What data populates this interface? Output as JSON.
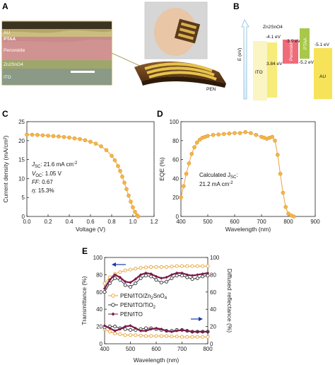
{
  "panel_labels": {
    "a": "A",
    "b": "B",
    "c": "C",
    "d": "D",
    "e": "E"
  },
  "panel_a": {
    "layers": [
      "AU",
      "PTAA",
      "Perovskite",
      "Zn2SnO4",
      "ITO"
    ],
    "substrate_label": "PEN"
  },
  "panel_b": {
    "ylabel": "E (eV)",
    "ito_label": "ITO",
    "zn2sno4_label": "Zn2SnO4",
    "perovskite_label": "Perovskite",
    "ptaa_label": "PTAA",
    "au_label": "AU",
    "levels": {
      "zn2sno4_cb": "-4.1 eV",
      "bandgap": "3.84 eV",
      "perovskite_top": "-3.9 eV",
      "ptaa_bottom": "-5.2 eV",
      "au_wf": "-5.1 eV"
    },
    "colors": {
      "ito": "#fbf4c3",
      "zn2sno4": "#f7ec7a",
      "perovskite": "#f06b7a",
      "ptaa": "#a8c84a",
      "au": "#f7e35a"
    }
  },
  "chart_data": [
    {
      "panel": "C",
      "type": "line",
      "xlabel": "Voltage (V)",
      "ylabel": "Current density (mA/cm²)",
      "xlim": [
        0,
        1.2
      ],
      "ylim": [
        0,
        25
      ],
      "xticks": [
        "0.0",
        "0.2",
        "0.4",
        "0.6",
        "0.8",
        "1.0",
        "1.2"
      ],
      "yticks": [
        "0",
        "5",
        "10",
        "15",
        "20",
        "25"
      ],
      "annotations": [
        "J",
        "SC",
        ": 21.6 mA cm",
        "-2",
        "V",
        "OC",
        ": 1.05 V",
        "FF",
        ": 0.67",
        "η",
        ": 15.3%"
      ],
      "series": [
        {
          "color": "#e8a23a",
          "x": [
            0.0,
            0.05,
            0.1,
            0.15,
            0.2,
            0.25,
            0.3,
            0.35,
            0.4,
            0.45,
            0.5,
            0.55,
            0.6,
            0.65,
            0.7,
            0.75,
            0.8,
            0.83,
            0.86,
            0.88,
            0.9,
            0.92,
            0.94,
            0.96,
            0.98,
            1.0,
            1.02,
            1.04,
            1.05
          ],
          "y": [
            21.6,
            21.55,
            21.5,
            21.4,
            21.3,
            21.2,
            21.1,
            20.95,
            20.8,
            20.6,
            20.4,
            20.1,
            19.7,
            19.2,
            18.5,
            17.5,
            16.0,
            14.8,
            13.3,
            12.0,
            10.5,
            8.9,
            7.2,
            5.5,
            3.9,
            2.4,
            1.2,
            0.3,
            0.0
          ]
        }
      ]
    },
    {
      "panel": "D",
      "type": "line",
      "xlabel": "Wavelength (nm)",
      "ylabel": "EQE (%)",
      "xlim": [
        400,
        900
      ],
      "ylim": [
        0,
        100
      ],
      "xticks": [
        "400",
        "500",
        "600",
        "700",
        "800",
        "900"
      ],
      "yticks": [
        "0",
        "20",
        "40",
        "60",
        "80",
        "100"
      ],
      "annotations": [
        "Calculated J",
        "SC",
        ":",
        "21.2 mA cm",
        "-2"
      ],
      "series": [
        {
          "color": "#e8a23a",
          "x": [
            400,
            410,
            420,
            430,
            440,
            450,
            460,
            470,
            480,
            490,
            500,
            520,
            540,
            560,
            580,
            600,
            620,
            640,
            660,
            680,
            700,
            710,
            720,
            730,
            740,
            750,
            760,
            770,
            780,
            790,
            800,
            810,
            820
          ],
          "y": [
            20,
            32,
            45,
            56,
            66,
            73,
            78,
            81,
            83,
            84,
            85,
            86,
            86.5,
            87,
            87.5,
            88,
            88,
            89,
            88,
            86,
            84,
            83,
            82,
            83,
            84,
            80,
            65,
            45,
            25,
            10,
            3,
            1,
            0
          ]
        }
      ]
    },
    {
      "panel": "E",
      "type": "line",
      "xlabel": "Wavelength (nm)",
      "ylabel": "Transmittance (%)",
      "y2label": "Diffused reflectance (%)",
      "xlim": [
        400,
        800
      ],
      "ylim": [
        0,
        100
      ],
      "xticks": [
        "400",
        "500",
        "600",
        "700",
        "800"
      ],
      "yticks": [
        "0",
        "20",
        "40",
        "60",
        "80",
        "100"
      ],
      "legend": [
        "PEN/ITO/Zn",
        "2",
        "SnO",
        "4",
        "PEN/ITO/TiO",
        "2",
        "PEN/ITO"
      ],
      "legend_placement": "lower-left",
      "series": [
        {
          "name": "PEN/ITO/Zn2SnO4 transmittance",
          "color": "#e8a23a",
          "x": [
            400,
            420,
            440,
            460,
            480,
            500,
            520,
            540,
            560,
            580,
            600,
            620,
            640,
            660,
            680,
            700,
            720,
            740,
            760,
            780,
            800
          ],
          "y": [
            70,
            77,
            81,
            83,
            85,
            86,
            87,
            88,
            88.5,
            89,
            89,
            89,
            89,
            89.5,
            90,
            90,
            90,
            90,
            90,
            90,
            90
          ]
        },
        {
          "name": "PEN/ITO/TiO2 transmittance",
          "color": "#333333",
          "x": [
            400,
            420,
            440,
            460,
            480,
            500,
            520,
            540,
            560,
            580,
            600,
            620,
            640,
            660,
            680,
            700,
            720,
            740,
            760,
            780,
            800
          ],
          "y": [
            60,
            70,
            76,
            74,
            68,
            66,
            70,
            76,
            79,
            78,
            74,
            71,
            72,
            76,
            79,
            79,
            77,
            75,
            76,
            78,
            79
          ]
        },
        {
          "name": "PEN/ITO transmittance",
          "color": "#7a1a4a",
          "x": [
            400,
            420,
            440,
            460,
            480,
            500,
            520,
            540,
            560,
            580,
            600,
            620,
            640,
            660,
            680,
            700,
            720,
            740,
            760,
            780,
            800
          ],
          "y": [
            64,
            74,
            80,
            77,
            72,
            71,
            75,
            80,
            82,
            81,
            78,
            76,
            77,
            80,
            82,
            82,
            80,
            79,
            80,
            81,
            82
          ]
        },
        {
          "name": "PEN/ITO/Zn2SnO4 reflectance",
          "color": "#e8a23a",
          "x": [
            400,
            420,
            440,
            460,
            480,
            500,
            520,
            540,
            560,
            580,
            600,
            620,
            640,
            660,
            680,
            700,
            720,
            740,
            760,
            780,
            800
          ],
          "y": [
            17,
            14,
            12,
            11,
            10,
            10,
            10,
            9.5,
            9,
            9,
            9,
            9,
            9,
            8.5,
            8.5,
            8,
            8,
            8,
            8,
            8,
            8
          ]
        },
        {
          "name": "PEN/ITO/TiO2 reflectance",
          "color": "#333333",
          "x": [
            400,
            420,
            440,
            460,
            480,
            500,
            520,
            540,
            560,
            580,
            600,
            620,
            640,
            660,
            680,
            700,
            720,
            740,
            760,
            780,
            800
          ],
          "y": [
            19,
            20,
            20,
            18,
            17,
            16,
            16,
            17,
            18,
            18,
            17,
            16,
            15,
            15,
            16,
            16,
            15,
            14,
            14,
            14,
            14
          ]
        },
        {
          "name": "PEN/ITO reflectance",
          "color": "#7a1a4a",
          "x": [
            400,
            420,
            440,
            460,
            480,
            500,
            520,
            540,
            560,
            580,
            600,
            620,
            640,
            660,
            680,
            700,
            720,
            740,
            760,
            780,
            800
          ],
          "y": [
            21,
            18,
            15,
            17,
            20,
            21,
            18,
            15,
            15,
            17,
            18,
            17,
            15,
            14,
            15,
            16,
            15,
            14,
            14,
            14,
            14
          ]
        }
      ]
    }
  ]
}
